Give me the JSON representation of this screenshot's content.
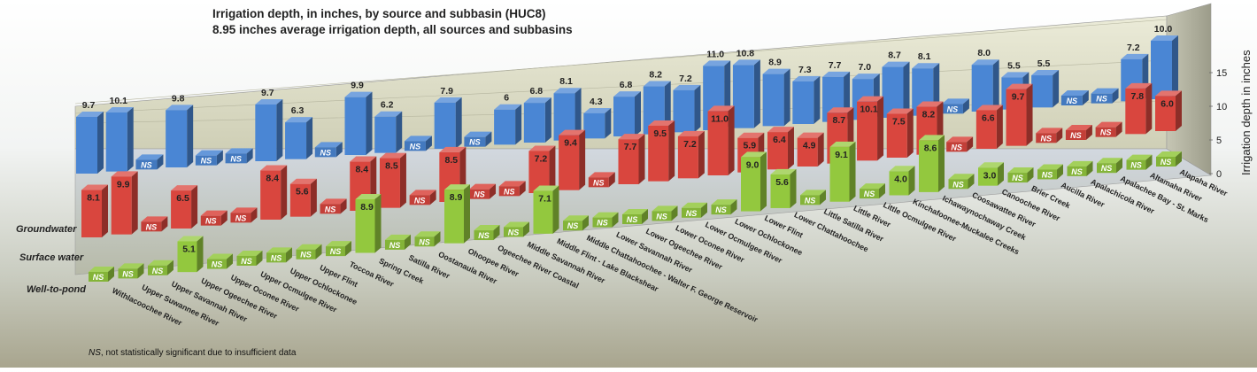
{
  "chart_data": {
    "type": "bar",
    "title": "Irrigation depth, in inches, by source and subbasin (HUC8)",
    "subtitle": "8.95 inches average irrigation depth, all sources and subbasins",
    "zlabel": "Irrigation depth in inches",
    "zlim": [
      0,
      15
    ],
    "z_ticks": [
      "0",
      "5",
      "10",
      "15"
    ],
    "footnote_em": "NS",
    "footnote_rest": ", not statistically significant due to insufficient data",
    "categories": [
      "Withlacoochee River",
      "Upper Suwannee River",
      "Upper Savannah River",
      "Upper Ogeechee River",
      "Upper Oconee River",
      "Upper Ocmulgee River",
      "Upper Ochlockonee",
      "Upper Flint",
      "Toccoa River",
      "Spring Creek",
      "Satilla River",
      "Oostanaula River",
      "Ohoopee River",
      "Ogeechee River Coastal",
      "Middle Savannah River",
      "Middle Flint - Lake Blackshear",
      "Middle Chattahoochee - Walter F. George Reservoir",
      "Lower Savannah River",
      "Lower Ogeechee River",
      "Lower Oconee River",
      "Lower Ocmulgee River",
      "Lower Ochlockonee",
      "Lower Flint",
      "Lower Chattahoochee",
      "Little Satilla River",
      "Little River",
      "Little Ocmulgee River",
      "Kinchafoonee-Muckalee Creeks",
      "Ichawaynochaway Creek",
      "Coosawattee River",
      "Canoochee River",
      "Brier Creek",
      "Aucilla River",
      "Apalachicola River",
      "Apalachee Bay - St. Marks",
      "Altamaha River",
      "Alapaha River"
    ],
    "series": [
      {
        "name": "Groundwater",
        "color": "#4a86d4",
        "values": [
          9.7,
          10.1,
          null,
          9.8,
          null,
          null,
          9.7,
          6.3,
          null,
          9.9,
          6.2,
          null,
          7.9,
          null,
          6,
          6.8,
          8.1,
          4.3,
          6.8,
          8.2,
          7.2,
          11.0,
          10.8,
          8.9,
          7.3,
          7.7,
          7.0,
          8.7,
          8.1,
          null,
          8.0,
          5.5,
          5.5,
          null,
          null,
          7.2,
          10.0
        ],
        "labels": [
          "9.7",
          "10.1",
          "NS",
          "9.8",
          "NS",
          "NS",
          "9.7",
          "6.3",
          "NS",
          "9.9",
          "6.2",
          "NS",
          "7.9",
          "NS",
          "6",
          "6.8",
          "8.1",
          "4.3",
          "6.8",
          "8.2",
          "7.2",
          "11.0",
          "10.8",
          "8.9",
          "7.3",
          "7.7",
          "7.0",
          "8.7",
          "8.1",
          "NS",
          "8.0",
          "5.5",
          "5.5",
          "NS",
          "NS",
          "7.2",
          "10.0"
        ]
      },
      {
        "name": "Surface water",
        "color": "#d9463e",
        "values": [
          8.1,
          9.9,
          null,
          6.5,
          null,
          null,
          8.4,
          5.6,
          null,
          8.4,
          8.5,
          null,
          8.5,
          null,
          null,
          7.2,
          9.4,
          null,
          7.7,
          9.5,
          7.2,
          11.0,
          5.9,
          6.4,
          4.9,
          8.7,
          10.1,
          7.5,
          8.2,
          null,
          6.6,
          9.7,
          null,
          null,
          null,
          7.8,
          6.0
        ],
        "labels": [
          "8.1",
          "9.9",
          "NS",
          "6.5",
          "NS",
          "NS",
          "8.4",
          "5.6",
          "NS",
          "8.4",
          "8.5",
          "NS",
          "8.5",
          "NS",
          "NS",
          "7.2",
          "9.4",
          "NS",
          "7.7",
          "9.5",
          "7.2",
          "11.0",
          "5.9",
          "6.4",
          "4.9",
          "8.7",
          "10.1",
          "7.5",
          "8.2",
          "NS",
          "6.6",
          "9.7",
          "NS",
          "NS",
          "NS",
          "7.8",
          "6.0"
        ]
      },
      {
        "name": "Well-to-pond",
        "color": "#93c83e",
        "values": [
          null,
          null,
          null,
          5.1,
          null,
          null,
          null,
          null,
          null,
          8.9,
          null,
          null,
          8.9,
          null,
          null,
          7.1,
          null,
          null,
          null,
          null,
          null,
          null,
          9.0,
          5.6,
          null,
          9.1,
          null,
          4.0,
          8.6,
          null,
          3.0,
          null,
          null,
          null,
          null,
          null,
          null
        ],
        "labels": [
          "NS",
          "NS",
          "NS",
          "5.1",
          "NS",
          "NS",
          "NS",
          "NS",
          "NS",
          "8.9",
          "NS",
          "NS",
          "8.9",
          "NS",
          "NS",
          "7.1",
          "NS",
          "NS",
          "NS",
          "NS",
          "NS",
          "NS",
          "9.0",
          "5.6",
          "NS",
          "9.1",
          "NS",
          "4.0",
          "8.6",
          "NS",
          "3.0",
          "NS",
          "NS",
          "NS",
          "NS",
          "NS",
          "NS"
        ]
      }
    ]
  }
}
